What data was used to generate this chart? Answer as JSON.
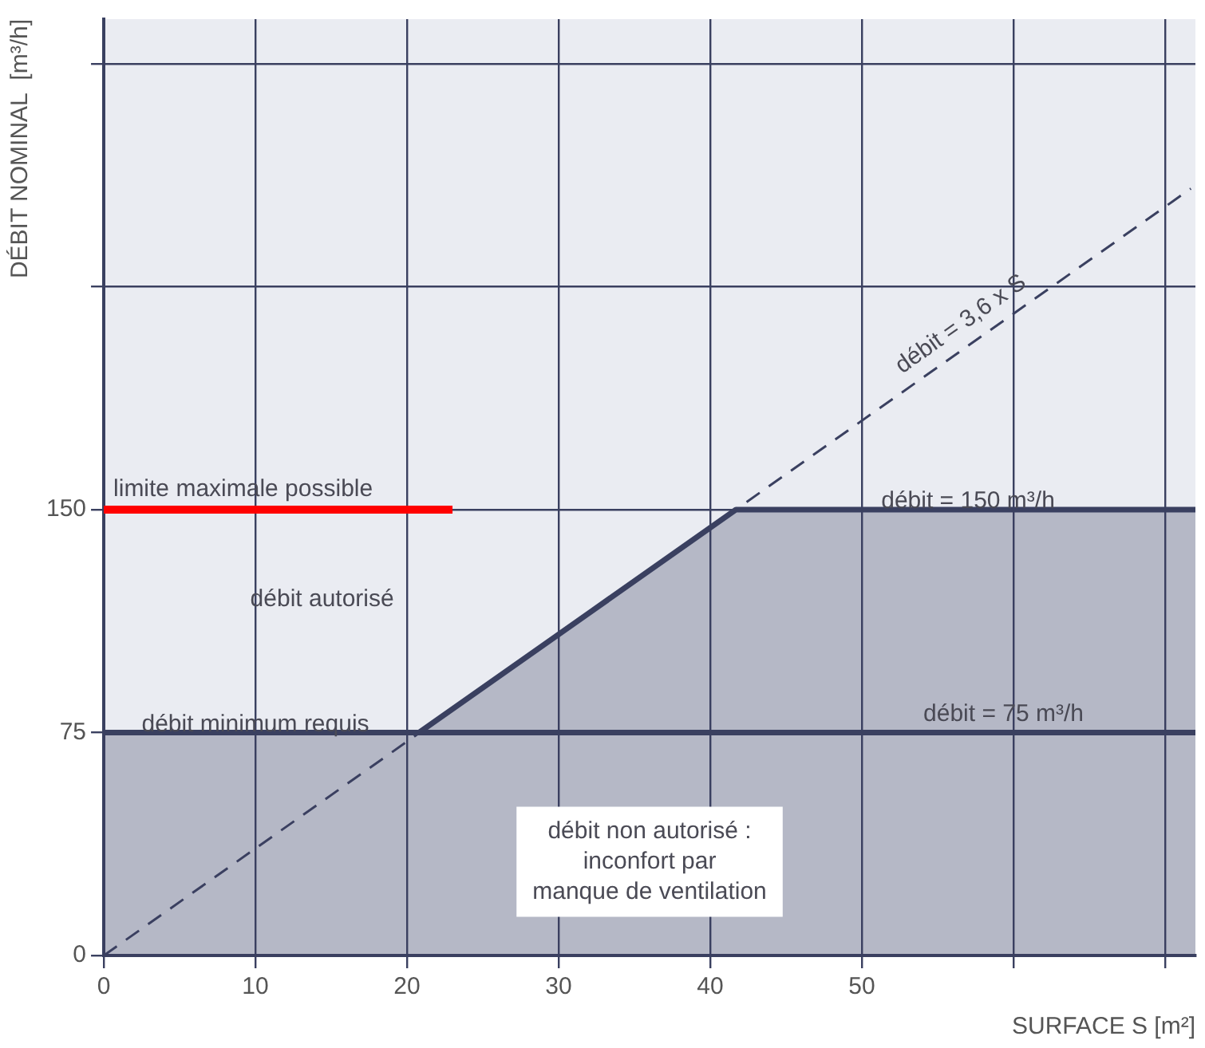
{
  "chart_data": {
    "type": "line",
    "xlabel": "SURFACE S [m²]",
    "ylabel": "DÉBIT NOMINAL  [m³/h]",
    "xlim": [
      0,
      72
    ],
    "xticks": [
      0,
      10,
      20,
      30,
      40,
      50,
      {
        "value": 60,
        "label": null
      },
      {
        "value": 70,
        "label": null
      }
    ],
    "ylim": [
      0,
      315
    ],
    "yticks": [
      0,
      75,
      150,
      {
        "value": 225,
        "label": null
      },
      {
        "value": 300,
        "label": null
      }
    ],
    "grid": true,
    "series": [
      {
        "type": "area",
        "color": "#3a4060",
        "x": [
          0,
          20.8,
          41.7,
          72
        ],
        "values": [
          75,
          75,
          150,
          150
        ]
      },
      {
        "type": "line",
        "name": "débit = 3,6 x S",
        "line_style": "dashed",
        "color": "#3a4060",
        "x": [
          0,
          71.7
        ],
        "values": [
          0,
          258
        ]
      },
      {
        "type": "line",
        "name": "limite maximale possible",
        "color": "#ff0000",
        "x": [
          0,
          23
        ],
        "values": [
          150,
          150
        ]
      }
    ],
    "ref_lines": [
      {
        "axis": "y",
        "value": 75,
        "label": "débit = 75 m³/h",
        "color": "#3a4060"
      }
    ],
    "annotations": [
      "débit autorisé",
      {
        "text": "débit minimum requis",
        "x": 10,
        "y": 75
      },
      {
        "text": "débit = 150 m³/h",
        "x": 57,
        "y": 150
      },
      "débit non autorisé :\ninconfort par\nmanque de ventilation"
    ]
  }
}
